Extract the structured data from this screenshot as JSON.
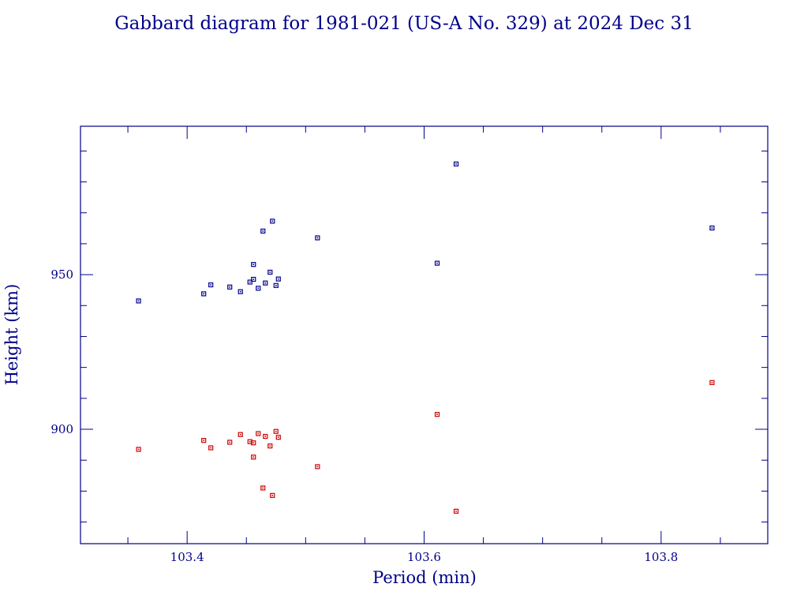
{
  "chart_data": {
    "type": "scatter",
    "title": "Gabbard diagram for 1981-021 (US-A No. 329) at 2024 Dec 31",
    "xlabel": "Period (min)",
    "ylabel": "Height (km)",
    "xlim": [
      103.31,
      103.89
    ],
    "ylim": [
      863,
      998
    ],
    "x_ticks": [
      103.4,
      103.6,
      103.8
    ],
    "x_tick_labels": [
      "103.4",
      "103.6",
      "103.8"
    ],
    "y_ticks": [
      900,
      950
    ],
    "y_tick_labels": [
      "900",
      "950"
    ],
    "grid": false,
    "legend": false,
    "colors": {
      "frame": "#00008b",
      "text": "#00008b",
      "apogee": "#00008b",
      "perigee": "#cc0000"
    },
    "series": [
      {
        "color": "#00008b",
        "points": [
          [
            103.359,
            941.5
          ],
          [
            103.414,
            943.8
          ],
          [
            103.42,
            946.7
          ],
          [
            103.436,
            946.0
          ],
          [
            103.445,
            944.5
          ],
          [
            103.453,
            947.6
          ],
          [
            103.456,
            953.3
          ],
          [
            103.456,
            948.5
          ],
          [
            103.46,
            945.6
          ],
          [
            103.464,
            964.1
          ],
          [
            103.466,
            947.3
          ],
          [
            103.47,
            950.8
          ],
          [
            103.472,
            967.3
          ],
          [
            103.475,
            946.5
          ],
          [
            103.477,
            948.6
          ],
          [
            103.51,
            961.9
          ],
          [
            103.611,
            953.7
          ],
          [
            103.627,
            985.8
          ],
          [
            103.843,
            965.1
          ]
        ]
      },
      {
        "color": "#cc0000",
        "points": [
          [
            103.359,
            893.5
          ],
          [
            103.414,
            896.4
          ],
          [
            103.42,
            894.0
          ],
          [
            103.436,
            895.8
          ],
          [
            103.445,
            898.3
          ],
          [
            103.453,
            896.0
          ],
          [
            103.456,
            891.0
          ],
          [
            103.456,
            895.6
          ],
          [
            103.46,
            898.6
          ],
          [
            103.464,
            881.0
          ],
          [
            103.466,
            897.7
          ],
          [
            103.47,
            894.6
          ],
          [
            103.472,
            878.6
          ],
          [
            103.475,
            899.3
          ],
          [
            103.477,
            897.4
          ],
          [
            103.51,
            887.9
          ],
          [
            103.611,
            904.8
          ],
          [
            103.627,
            873.5
          ],
          [
            103.843,
            915.1
          ]
        ]
      }
    ]
  }
}
